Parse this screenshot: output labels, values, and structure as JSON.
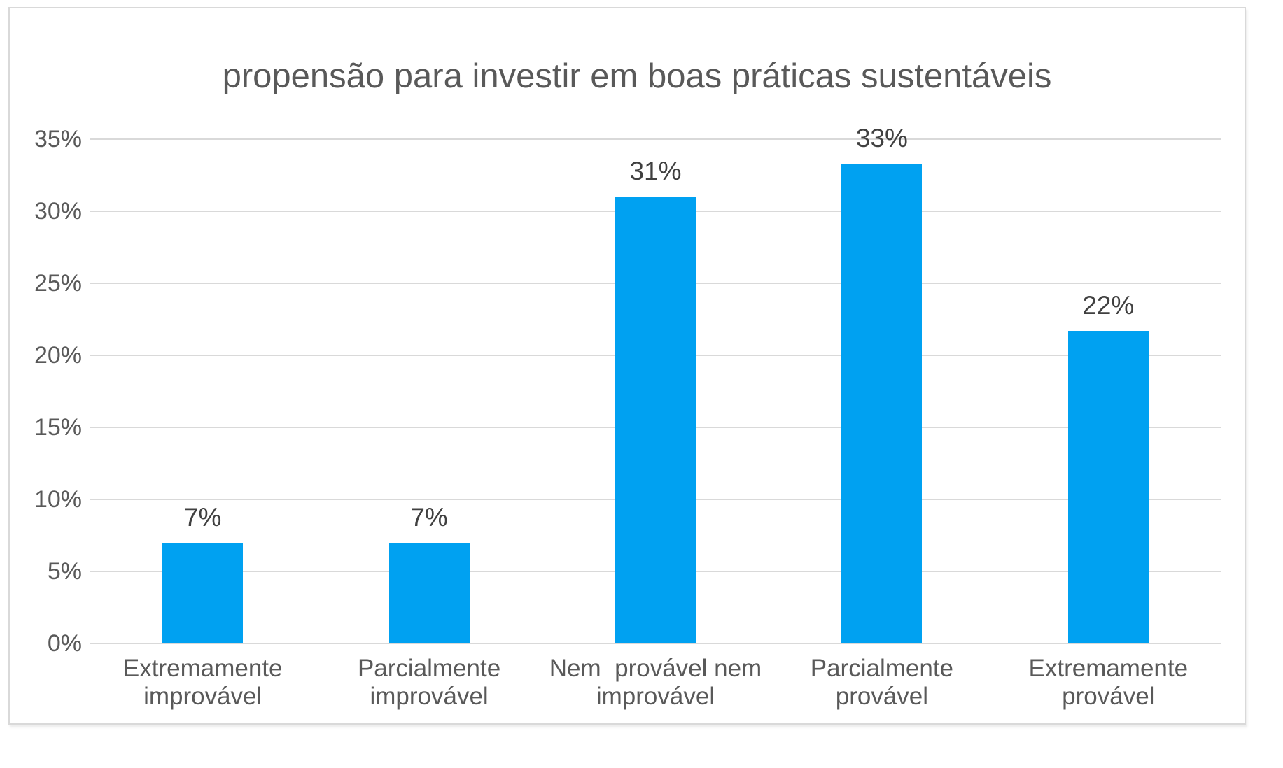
{
  "chart_data": {
    "type": "bar",
    "title": "propensão para investir em boas práticas sustentáveis",
    "categories": [
      "Extremamente improvável",
      "Parcialmente improvável",
      "Nem  provável nem improvável",
      "Parcialmente provável",
      "Extremamente provável"
    ],
    "category_lines": [
      [
        "Extremamente",
        "improvável"
      ],
      [
        "Parcialmente",
        "improvável"
      ],
      [
        "Nem  provável nem",
        "improvável"
      ],
      [
        "Parcialmente",
        "provável"
      ],
      [
        "Extremamente",
        "provável"
      ]
    ],
    "values": [
      7,
      7,
      31,
      33.3,
      21.7
    ],
    "data_labels": [
      "7%",
      "7%",
      "31%",
      "33%",
      "22%"
    ],
    "y_ticks": [
      "0%",
      "5%",
      "10%",
      "15%",
      "20%",
      "25%",
      "30%",
      "35%"
    ],
    "y_tick_values": [
      0,
      5,
      10,
      15,
      20,
      25,
      30,
      35
    ],
    "ylim": [
      0,
      35
    ],
    "xlabel": "",
    "ylabel": "",
    "grid": true,
    "legend": false,
    "colors": {
      "bar": "#00a1f1",
      "gridline": "#d9d9d9",
      "frame_border": "#d9d9d9",
      "title_text": "#595959",
      "axis_text": "#595959",
      "data_label_text": "#404040",
      "background": "#ffffff"
    }
  }
}
